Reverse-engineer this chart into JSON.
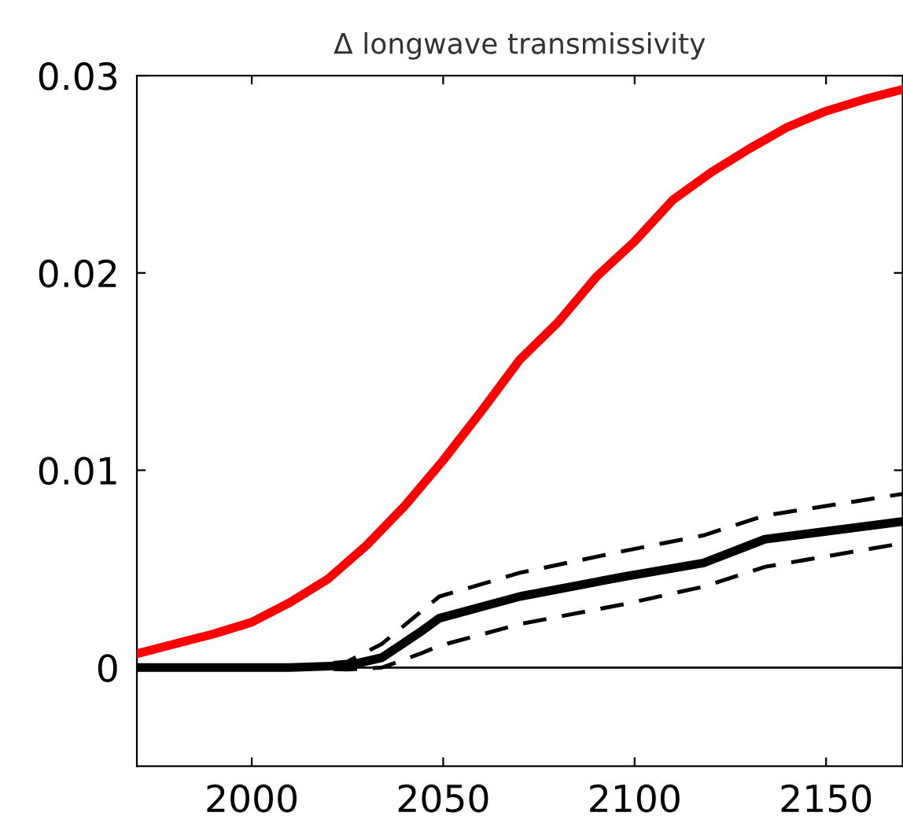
{
  "chart_data": {
    "type": "line",
    "title": "Δ longwave transmissivity",
    "series": [
      {
        "color": "#ff0000",
        "line_style": "solid",
        "x": [
          1970,
          1980,
          1990,
          2000,
          2010,
          2020,
          2030,
          2040,
          2050,
          2060,
          2070,
          2080,
          2090,
          2100,
          2110,
          2120,
          2130,
          2140,
          2150,
          2160,
          2170
        ],
        "values": [
          0.0007,
          0.0012,
          0.0017,
          0.0023,
          0.0033,
          0.0045,
          0.0062,
          0.0082,
          0.0105,
          0.013,
          0.0156,
          0.0175,
          0.0198,
          0.0216,
          0.0237,
          0.0251,
          0.0263,
          0.0274,
          0.0282,
          0.0288,
          0.0293
        ]
      },
      {
        "color": "#000000",
        "line_style": "dashed",
        "x": [
          1970,
          1990,
          2010,
          2025,
          2034,
          2044,
          2049,
          2070,
          2097,
          2118,
          2134,
          2170
        ],
        "values": [
          0,
          0,
          0,
          -0.0001,
          0,
          0.0007,
          0.0011,
          0.0022,
          0.0032,
          0.0041,
          0.0051,
          0.0063
        ]
      },
      {
        "color": "#000000",
        "line_style": "dashed",
        "x": [
          1970,
          1990,
          2010,
          2025,
          2034,
          2044,
          2049,
          2070,
          2097,
          2118,
          2134,
          2170
        ],
        "values": [
          0,
          0,
          0,
          0.0003,
          0.0012,
          0.0028,
          0.0036,
          0.0048,
          0.0059,
          0.0067,
          0.0077,
          0.0088
        ]
      },
      {
        "color": "#000000",
        "line_style": "solid",
        "x": [
          1970,
          1990,
          2010,
          2025,
          2034,
          2044,
          2049,
          2070,
          2097,
          2118,
          2134,
          2170
        ],
        "values": [
          0,
          0,
          0,
          0.0001,
          0.0005,
          0.0018,
          0.0025,
          0.0036,
          0.0046,
          0.0053,
          0.0065,
          0.0074
        ]
      }
    ],
    "xlim": [
      1970,
      2170
    ],
    "xticks": [
      2000,
      2050,
      2100,
      2150
    ],
    "ylim": [
      -0.005,
      0.03
    ],
    "yticks": [
      {
        "value": 0,
        "label": "0"
      },
      0.01,
      0.02,
      0.03
    ],
    "ref_lines": [
      {
        "axis": "y",
        "value": 0,
        "color": "#000000"
      }
    ],
    "legend": false
  }
}
